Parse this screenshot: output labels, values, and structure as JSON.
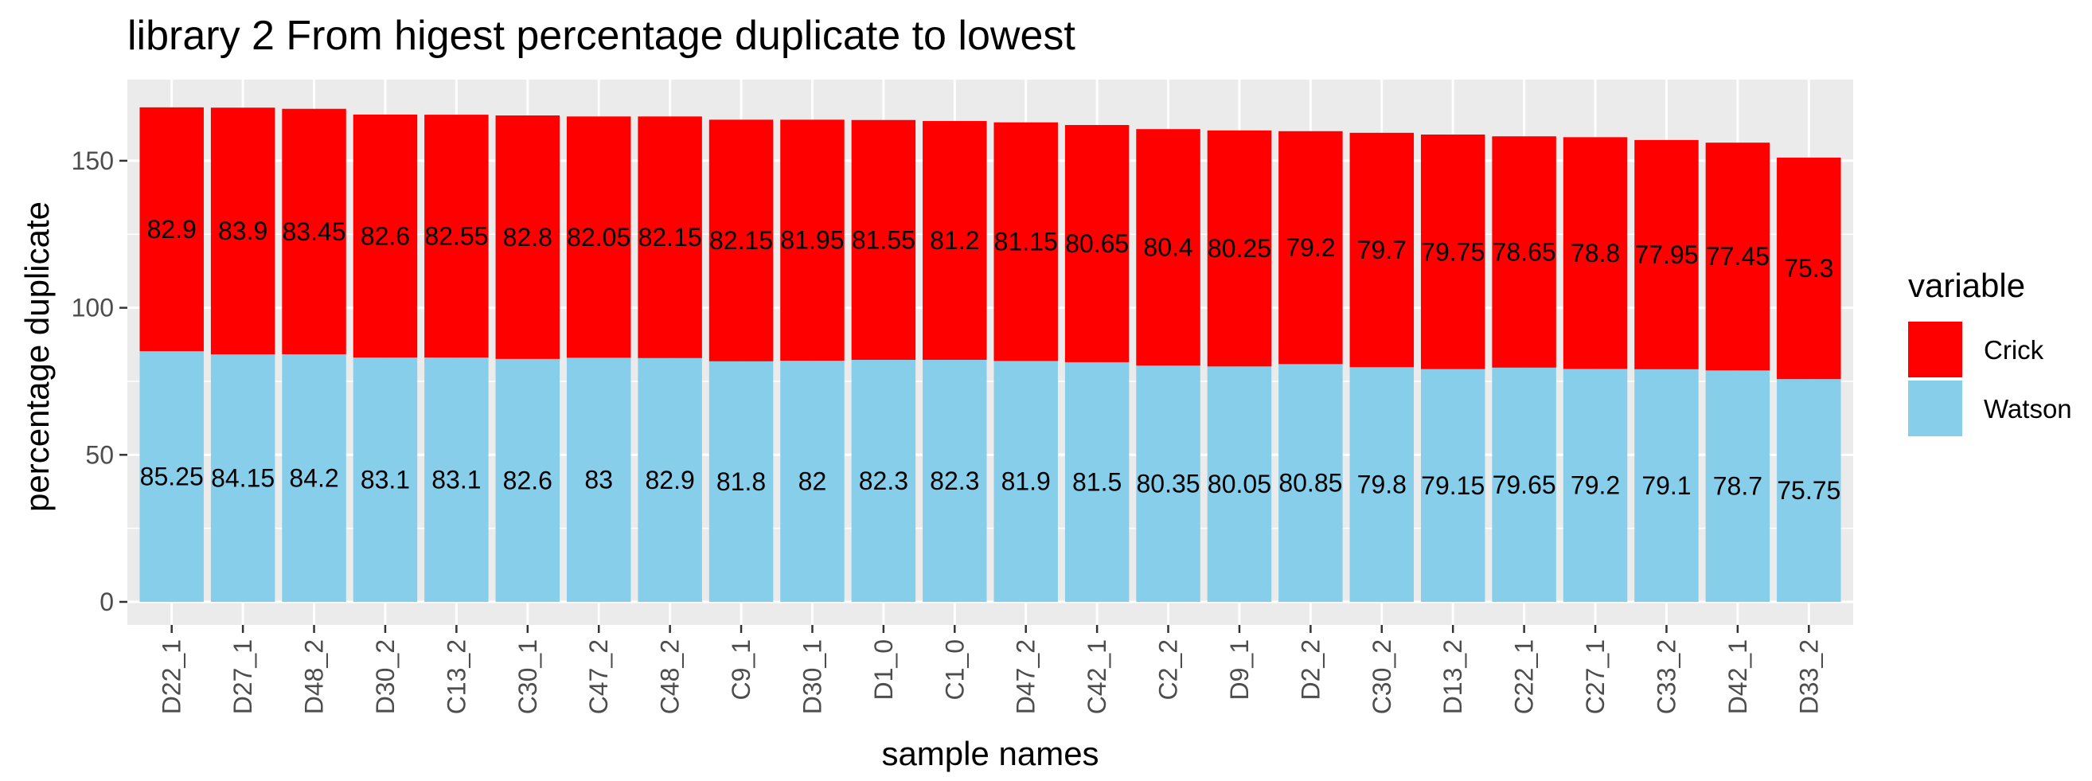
{
  "chart_data": {
    "type": "bar",
    "stacked": true,
    "title": "library 2 From higest percentage duplicate to lowest",
    "xlabel": "sample names",
    "ylabel": "percentage duplicate",
    "ylim": [
      0,
      172
    ],
    "yticks": [
      0,
      50,
      100,
      150
    ],
    "grid": true,
    "legend": {
      "title": "variable",
      "position": "right"
    },
    "categories": [
      "D22_1",
      "D27_1",
      "D48_2",
      "D30_2",
      "C13_2",
      "C30_1",
      "C47_2",
      "C48_2",
      "C9_1",
      "D30_1",
      "D1_0",
      "C1_0",
      "D47_2",
      "C42_1",
      "C2_2",
      "D9_1",
      "D2_2",
      "C30_2",
      "D13_2",
      "C22_1",
      "C27_1",
      "C33_2",
      "D42_1",
      "D33_2"
    ],
    "series": [
      {
        "name": "Watson",
        "color": "#87CEEB",
        "values": [
          85.25,
          84.15,
          84.2,
          83.1,
          83.1,
          82.6,
          83,
          82.9,
          81.8,
          82,
          82.3,
          82.3,
          81.9,
          81.5,
          80.35,
          80.05,
          80.85,
          79.8,
          79.15,
          79.65,
          79.2,
          79.1,
          78.7,
          75.75
        ],
        "labels": [
          "85.25",
          "84.15",
          "84.2",
          "83.1",
          "83.1",
          "82.6",
          "83",
          "82.9",
          "81.8",
          "82",
          "82.3",
          "82.3",
          "81.9",
          "81.5",
          "80.35",
          "80.05",
          "80.85",
          "79.8",
          "79.15",
          "79.65",
          "79.2",
          "79.1",
          "78.7",
          "75.75"
        ]
      },
      {
        "name": "Crick",
        "color": "#FF0000",
        "values": [
          82.9,
          83.9,
          83.45,
          82.6,
          82.55,
          82.8,
          82.05,
          82.15,
          82.15,
          81.95,
          81.55,
          81.2,
          81.15,
          80.65,
          80.4,
          80.25,
          79.2,
          79.7,
          79.75,
          78.65,
          78.8,
          77.95,
          77.45,
          75.3
        ],
        "labels": [
          "82.9",
          "83.9",
          "83.45",
          "82.6",
          "82.55",
          "82.8",
          "82.05",
          "82.15",
          "82.15",
          "81.95",
          "81.55",
          "81.2",
          "81.15",
          "80.65",
          "80.4",
          "80.25",
          "79.2",
          "79.7",
          "79.75",
          "78.65",
          "78.8",
          "77.95",
          "77.45",
          "75.3"
        ]
      }
    ],
    "legend_order": [
      "Crick",
      "Watson"
    ],
    "panel_background": "#EBEBEB",
    "grid_color": "#FFFFFF"
  }
}
